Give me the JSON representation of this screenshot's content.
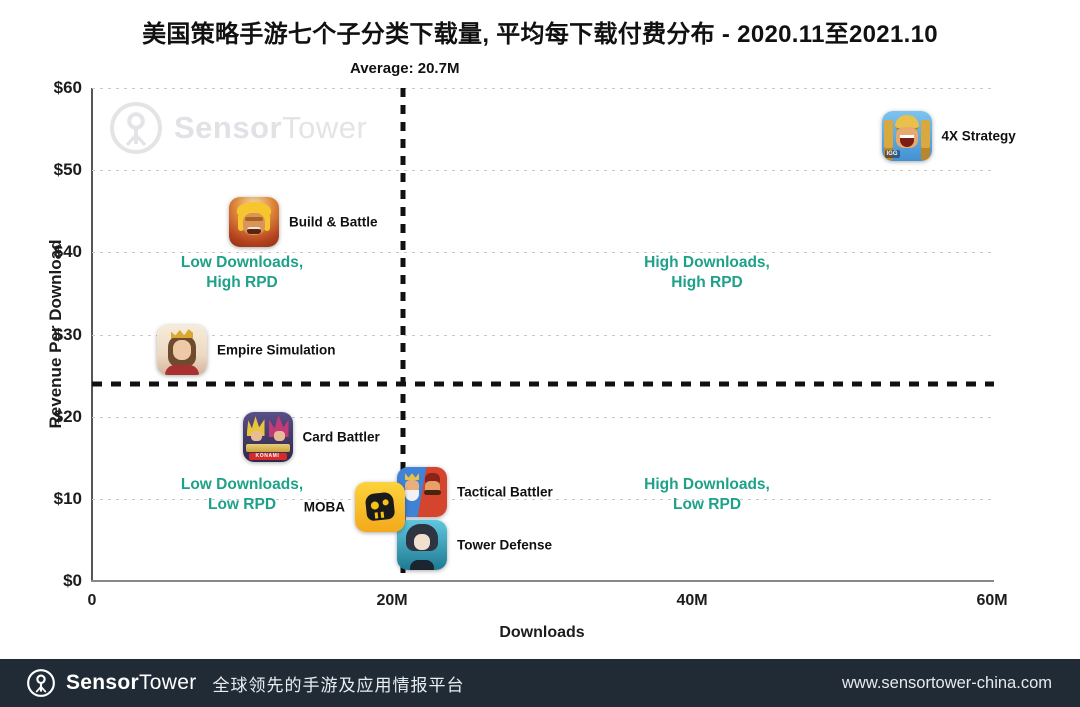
{
  "title": "美国策略手游七个子分类下载量, 平均每下载付费分布 - 2020.11至2021.10",
  "watermark": {
    "brand_bold": "Sensor",
    "brand_light": "Tower"
  },
  "chart_data": {
    "type": "scatter",
    "title": "美国策略手游七个子分类下载量, 平均每下载付费分布 - 2020.11至2021.10",
    "xlabel": "Downloads",
    "ylabel": "Revenue Per Download",
    "xlim_m": [
      0,
      60
    ],
    "ylim_usd": [
      0,
      60
    ],
    "x_ticks": [
      {
        "value_m": 0,
        "label": "0"
      },
      {
        "value_m": 20,
        "label": "20M"
      },
      {
        "value_m": 40,
        "label": "40M"
      },
      {
        "value_m": 60,
        "label": "60M"
      }
    ],
    "y_ticks": [
      {
        "value_usd": 0,
        "label": "$0"
      },
      {
        "value_usd": 10,
        "label": "$10"
      },
      {
        "value_usd": 20,
        "label": "$20"
      },
      {
        "value_usd": 30,
        "label": "$30"
      },
      {
        "value_usd": 40,
        "label": "$40"
      },
      {
        "value_usd": 50,
        "label": "$50"
      },
      {
        "value_usd": 60,
        "label": "$60"
      }
    ],
    "grid": "horizontal-dotted",
    "legend": "none",
    "average_downloads": {
      "label": "Average: 20.7M",
      "value_m": 20.7
    },
    "average_rpd": {
      "value_usd": 24.0
    },
    "points": [
      {
        "id": "4x-strategy",
        "label": "4X Strategy",
        "downloads_m": 54.3,
        "rpd_usd": 54.2,
        "label_side": "right",
        "badge": "IGG"
      },
      {
        "id": "build-battle",
        "label": "Build & Battle",
        "downloads_m": 10.8,
        "rpd_usd": 43.7,
        "label_side": "right",
        "badge": ""
      },
      {
        "id": "empire-simulation",
        "label": "Empire Simulation",
        "downloads_m": 6.0,
        "rpd_usd": 28.1,
        "label_side": "right",
        "badge": ""
      },
      {
        "id": "card-battler",
        "label": "Card Battler",
        "downloads_m": 11.7,
        "rpd_usd": 17.5,
        "label_side": "right",
        "badge": "KONAMI"
      },
      {
        "id": "moba",
        "label": "MOBA",
        "downloads_m": 19.2,
        "rpd_usd": 9.0,
        "label_side": "left",
        "badge": ""
      },
      {
        "id": "tactical-battler",
        "label": "Tactical Battler",
        "downloads_m": 22.0,
        "rpd_usd": 10.8,
        "label_side": "right",
        "badge": ""
      },
      {
        "id": "tower-defense",
        "label": "Tower Defense",
        "downloads_m": 22.0,
        "rpd_usd": 4.4,
        "label_side": "right",
        "badge": ""
      }
    ],
    "quadrant_labels": [
      {
        "id": "low-downloads-high-rpd",
        "line1": "Low Downloads,",
        "line2": "High RPD",
        "center_m_usd": [
          10,
          37.5
        ]
      },
      {
        "id": "high-downloads-high-rpd",
        "line1": "High Downloads,",
        "line2": "High RPD",
        "center_m_usd": [
          41,
          37.5
        ]
      },
      {
        "id": "low-downloads-low-rpd",
        "line1": "Low Downloads,",
        "line2": "Low RPD",
        "center_m_usd": [
          10,
          10.5
        ]
      },
      {
        "id": "high-downloads-low-rpd",
        "line1": "High Downloads,",
        "line2": "Low RPD",
        "center_m_usd": [
          41,
          10.5
        ]
      }
    ]
  },
  "colors": {
    "quadrant_text": "#1da189",
    "dashed_line": "#111111",
    "footer_bg": "#202b36"
  },
  "footer": {
    "brand_bold": "Sensor",
    "brand_light": "Tower",
    "tagline": "全球领先的手游及应用情报平台",
    "website": "www.sensortower-china.com"
  }
}
